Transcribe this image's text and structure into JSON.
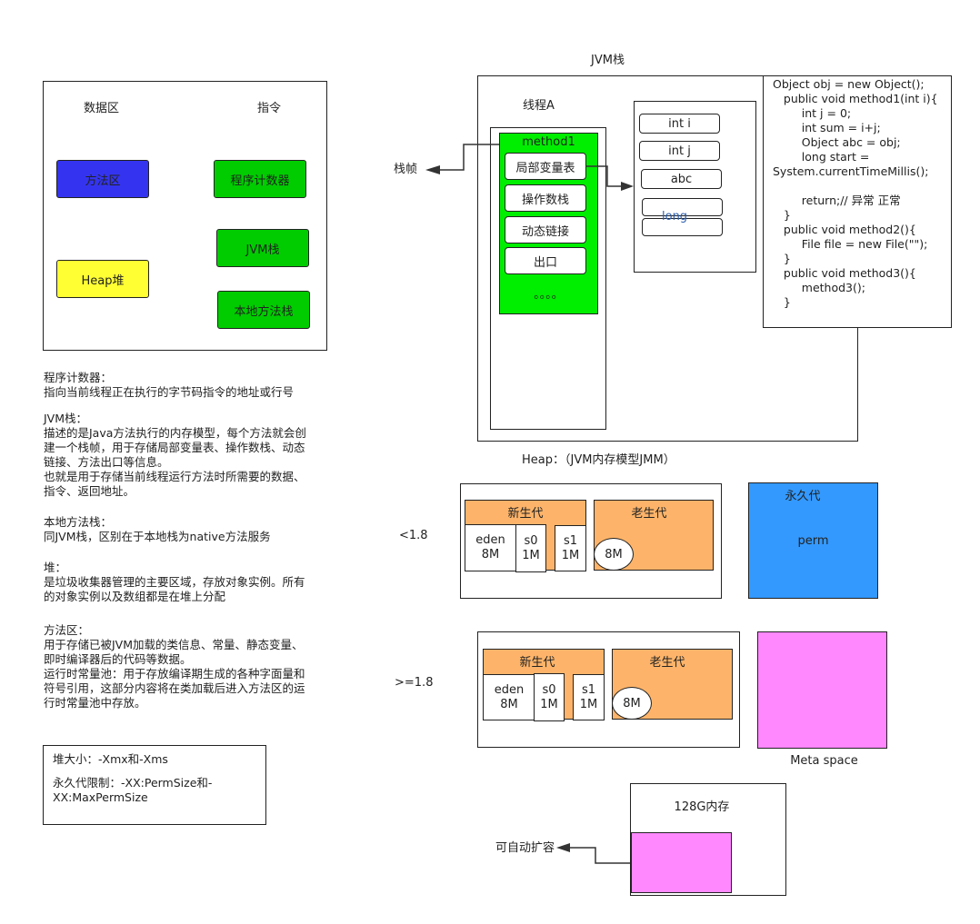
{
  "data_area": {
    "header_data": "数据区",
    "header_instr": "指令",
    "method_area": "方法区",
    "heap": "Heap堆",
    "pc_register": "程序计数器",
    "jvm_stack": "JVM栈",
    "native_stack": "本地方法栈"
  },
  "notes": {
    "pc_title": "程序计数器：",
    "pc_text": "指向当前线程正在执行的字节码指令的地址或行号",
    "jvm_title": "JVM栈：",
    "jvm_text": "描述的是Java方法执行的内存模型，每个方法就会创\n建一个栈帧，用于存储局部变量表、操作数栈、动态\n链接、方法出口等信息。\n也就是用于存储当前线程运行方法时所需要的数据、\n指令、返回地址。",
    "native_title": "本地方法栈：",
    "native_text": "同JVM栈，区别在于本地栈为native方法服务",
    "heap_title": "堆：",
    "heap_text": "是垃圾收集器管理的主要区域，存放对象实例。所有\n的对象实例以及数组都是在堆上分配",
    "method_title": "方法区：",
    "method_text": "用于存储已被JVM加载的类信息、常量、静态变量、\n即时编译器后的代码等数据。\n运行时常量池：用于存放编译期生成的各种字面量和\n符号引用，这部分内容将在类加载后进入方法区的运\n行时常量池中存放。"
  },
  "sizes": {
    "heap_size": "堆大小：-Xmx和-Xms",
    "perm_limit": "永久代限制：-XX:PermSize和-\nXX:MaxPermSize"
  },
  "jvm_stack": {
    "title": "JVM栈",
    "thread": "线程A",
    "frame_label": "栈帧",
    "method": "method1",
    "items": [
      "局部变量表",
      "操作数栈",
      "动态链接",
      "出口"
    ],
    "dots": "。。。。",
    "vars": [
      "int i",
      "int j",
      "abc",
      "",
      ""
    ],
    "long_label": "long",
    "code": "Object obj = new Object();\n   public void method1(int i){\n        int j = 0;\n        int sum = i+j;\n        Object abc = obj;\n        long start =\nSystem.currentTimeMillis();\n\n        return;// 异常 正常\n   }\n   public void method2(){\n        File file = new File(\"\");\n   }\n   public void method3(){\n        method3();\n   }"
  },
  "heap_title": "Heap：（JVM内存模型JMM）",
  "heap_old": {
    "label": "<1.8",
    "young": "新生代",
    "old": "老生代",
    "eden": "eden\n8M",
    "s0": "s0\n1M",
    "s1": "s1\n1M",
    "old_size": "8M",
    "perm_title": "永久代",
    "perm": "perm"
  },
  "heap_new": {
    "label": ">=1.8",
    "young": "新生代",
    "old": "老生代",
    "eden": "eden\n8M",
    "s0": "s0\n1M",
    "s1": "s1\n1M",
    "old_size": "8M",
    "meta": "Meta space"
  },
  "memory": {
    "title": "128G内存",
    "auto_expand": "可自动扩容"
  },
  "colors": {
    "method_area": "#3434f0",
    "heap": "#ffff33",
    "instruction": "#00cc00",
    "method_frame": "#00ee00",
    "generation": "#fdb46a",
    "perm": "#3399ff",
    "meta": "#ff88ff",
    "long_text": "#2a5db0"
  }
}
